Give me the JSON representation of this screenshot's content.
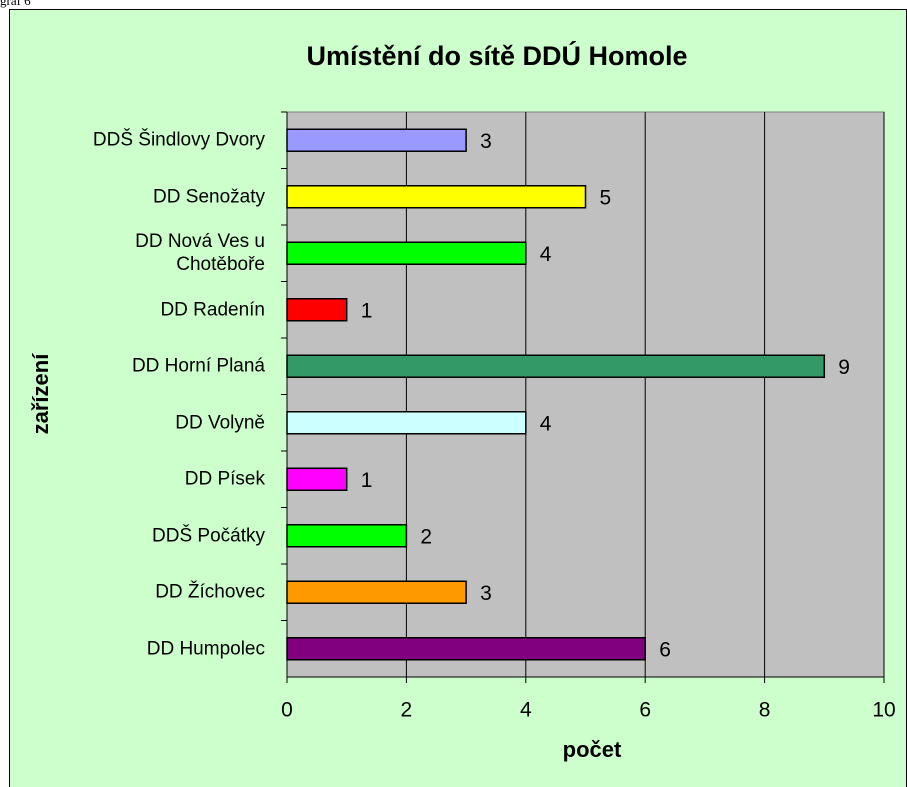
{
  "caption": "graf 6",
  "chart_data": {
    "type": "barh",
    "title": "Umístění do sítě DDÚ Homole",
    "categories": [
      "DDŠ Šindlovy Dvory",
      "DD Senožaty",
      "DD Nová Ves u\nChotěboře",
      "DD Radenín",
      "DD Horní Planá",
      "DD Volyně",
      "DD Písek",
      "DDŠ Počátky",
      "DD Žíchovec",
      "DD Humpolec"
    ],
    "values": [
      3,
      5,
      4,
      1,
      9,
      4,
      1,
      2,
      3,
      6
    ],
    "colors": [
      "#9999ff",
      "#ffff00",
      "#00ff00",
      "#ff0000",
      "#339966",
      "#ccffff",
      "#ff00ff",
      "#00ff00",
      "#ff9900",
      "#800080"
    ],
    "xlabel": "počet",
    "ylabel": "zařízení",
    "xlim": [
      0,
      10
    ],
    "xticks": [
      0,
      2,
      4,
      6,
      8,
      10
    ],
    "grid": true
  }
}
